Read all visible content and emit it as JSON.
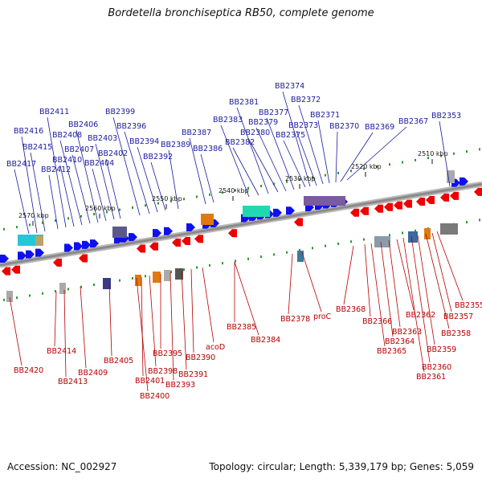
{
  "title": "Bordetella bronchiseptica RB50, complete genome",
  "footer": {
    "accession": "Accession: NC_002927",
    "summary": "Topology: circular; Length: 5,339,179 bp; Genes: 5,059"
  },
  "colors": {
    "forward_strand": "#1010ee",
    "reverse_strand": "#ee0000",
    "forward_label": "#1a1aa0",
    "reverse_label": "#b40000",
    "backbone": "#8a8a8a"
  },
  "scale_ticks": [
    "2510 kbp",
    "2520 kbp",
    "2530 kbp",
    "2540 kbp",
    "2550 kbp",
    "2560 kbp",
    "2570 kbp"
  ],
  "forward_genes": [
    "BB2353",
    "BB2367",
    "BB2369",
    "BB2370",
    "BB2371",
    "BB2372",
    "BB2373",
    "BB2374",
    "BB2375",
    "BB2377",
    "BB2379",
    "BB2380",
    "BB2381",
    "BB2382",
    "BB2383",
    "BB2386",
    "BB2387",
    "BB2389",
    "BB2392",
    "BB2394",
    "BB2396",
    "BB2399",
    "BB2402",
    "BB2403",
    "BB2404",
    "BB2406",
    "BB2407",
    "BB2408",
    "BB2410",
    "BB2411",
    "BB2412",
    "BB2415",
    "BB2416",
    "BB2417"
  ],
  "reverse_genes": [
    "BB2355",
    "BB2357",
    "BB2358",
    "BB2359",
    "BB2360",
    "BB2361",
    "BB2362",
    "BB2363",
    "BB2364",
    "BB2365",
    "BB2366",
    "BB2368",
    "proC",
    "BB2378",
    "BB2384",
    "BB2385",
    "acoD",
    "BB2390",
    "BB2391",
    "BB2393",
    "BB2395",
    "BB2398",
    "BB2401",
    "BB2400",
    "BB2405",
    "BB2409",
    "BB2413",
    "BB2414",
    "BB2420"
  ]
}
